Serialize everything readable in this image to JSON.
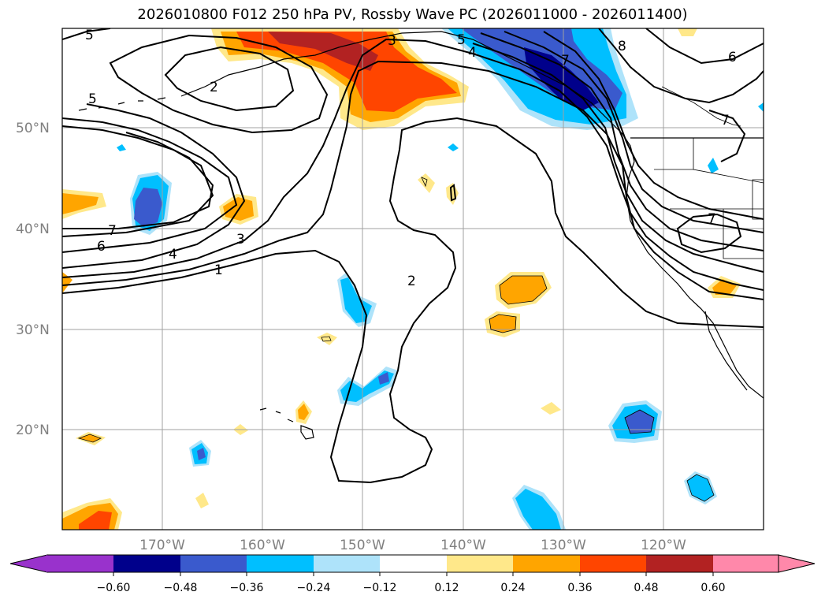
{
  "title": "2026010800 F012 250 hPa PV, Rossby Wave PC (2026011000 - 2026011400)",
  "latitude_labels": [
    "50°N",
    "40°N",
    "30°N",
    "20°N"
  ],
  "longitude_labels": [
    "170°W",
    "160°W",
    "150°W",
    "140°W",
    "130°W",
    "120°W"
  ],
  "colorbar": {
    "tick_labels": [
      "−0.60",
      "−0.48",
      "−0.36",
      "−0.24",
      "−0.12",
      "0.12",
      "0.24",
      "0.36",
      "0.48",
      "0.60"
    ],
    "colors": [
      "#9932cc",
      "#00008b",
      "#3a5acd",
      "#00bfff",
      "#aee3fa",
      "#ffffff",
      "#ffe88a",
      "#ffa500",
      "#ff4500",
      "#b22222",
      "#ff88aa"
    ]
  },
  "pv_contour_labels": [
    "1",
    "2",
    "3",
    "4",
    "5",
    "6",
    "7",
    "8"
  ]
}
